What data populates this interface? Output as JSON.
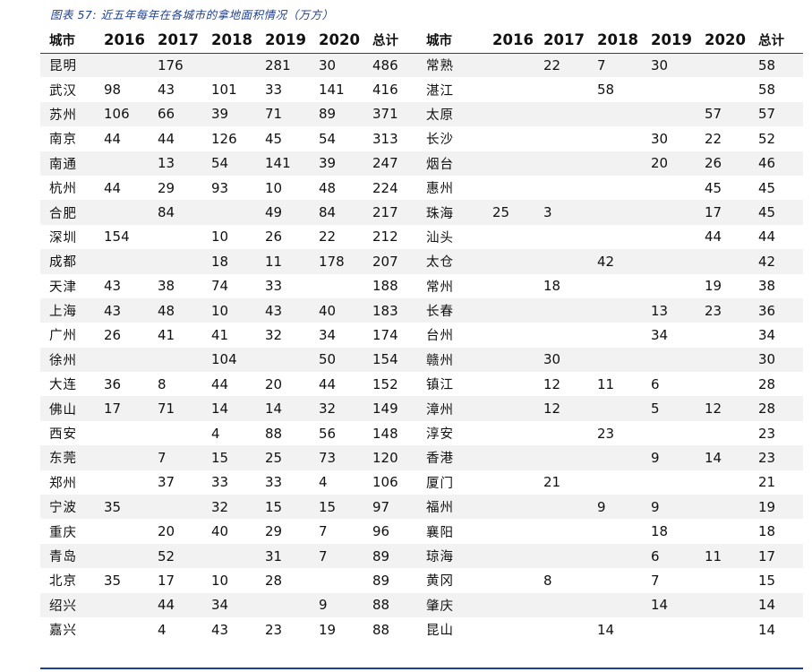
{
  "caption": "图表 57: 近五年每年在各城市的拿地面积情况（万方）",
  "headers": {
    "left": [
      "城市",
      "2016",
      "2017",
      "2018",
      "2019",
      "2020",
      "总计"
    ],
    "right": [
      "城市",
      "2016",
      "2017",
      "2018",
      "2019",
      "2020",
      "总计"
    ]
  },
  "rows": [
    {
      "left": [
        "昆明",
        "",
        "176",
        "",
        "281",
        "30",
        "486"
      ],
      "right": [
        "常熟",
        "",
        "22",
        "7",
        "30",
        "",
        "58"
      ]
    },
    {
      "left": [
        "武汉",
        "98",
        "43",
        "101",
        "33",
        "141",
        "416"
      ],
      "right": [
        "湛江",
        "",
        "",
        "58",
        "",
        "",
        "58"
      ]
    },
    {
      "left": [
        "苏州",
        "106",
        "66",
        "39",
        "71",
        "89",
        "371"
      ],
      "right": [
        "太原",
        "",
        "",
        "",
        "",
        "57",
        "57"
      ]
    },
    {
      "left": [
        "南京",
        "44",
        "44",
        "126",
        "45",
        "54",
        "313"
      ],
      "right": [
        "长沙",
        "",
        "",
        "",
        "30",
        "22",
        "52"
      ]
    },
    {
      "left": [
        "南通",
        "",
        "13",
        "54",
        "141",
        "39",
        "247"
      ],
      "right": [
        "烟台",
        "",
        "",
        "",
        "20",
        "26",
        "46"
      ]
    },
    {
      "left": [
        "杭州",
        "44",
        "29",
        "93",
        "10",
        "48",
        "224"
      ],
      "right": [
        "惠州",
        "",
        "",
        "",
        "",
        "45",
        "45"
      ]
    },
    {
      "left": [
        "合肥",
        "",
        "84",
        "",
        "49",
        "84",
        "217"
      ],
      "right": [
        "珠海",
        "25",
        "3",
        "",
        "",
        "17",
        "45"
      ]
    },
    {
      "left": [
        "深圳",
        "154",
        "",
        "10",
        "26",
        "22",
        "212"
      ],
      "right": [
        "汕头",
        "",
        "",
        "",
        "",
        "44",
        "44"
      ]
    },
    {
      "left": [
        "成都",
        "",
        "",
        "18",
        "11",
        "178",
        "207"
      ],
      "right": [
        "太仓",
        "",
        "",
        "42",
        "",
        "",
        "42"
      ]
    },
    {
      "left": [
        "天津",
        "43",
        "38",
        "74",
        "33",
        "",
        "188"
      ],
      "right": [
        "常州",
        "",
        "18",
        "",
        "",
        "19",
        "38"
      ]
    },
    {
      "left": [
        "上海",
        "43",
        "48",
        "10",
        "43",
        "40",
        "183"
      ],
      "right": [
        "长春",
        "",
        "",
        "",
        "13",
        "23",
        "36"
      ]
    },
    {
      "left": [
        "广州",
        "26",
        "41",
        "41",
        "32",
        "34",
        "174"
      ],
      "right": [
        "台州",
        "",
        "",
        "",
        "34",
        "",
        "34"
      ]
    },
    {
      "left": [
        "徐州",
        "",
        "",
        "104",
        "",
        "50",
        "154"
      ],
      "right": [
        "赣州",
        "",
        "30",
        "",
        "",
        "",
        "30"
      ]
    },
    {
      "left": [
        "大连",
        "36",
        "8",
        "44",
        "20",
        "44",
        "152"
      ],
      "right": [
        "镇江",
        "",
        "12",
        "11",
        "6",
        "",
        "28"
      ]
    },
    {
      "left": [
        "佛山",
        "17",
        "71",
        "14",
        "14",
        "32",
        "149"
      ],
      "right": [
        "漳州",
        "",
        "12",
        "",
        "5",
        "12",
        "28"
      ]
    },
    {
      "left": [
        "西安",
        "",
        "",
        "4",
        "88",
        "56",
        "148"
      ],
      "right": [
        "淳安",
        "",
        "",
        "23",
        "",
        "",
        "23"
      ]
    },
    {
      "left": [
        "东莞",
        "",
        "7",
        "15",
        "25",
        "73",
        "120"
      ],
      "right": [
        "香港",
        "",
        "",
        "",
        "9",
        "14",
        "23"
      ]
    },
    {
      "left": [
        "郑州",
        "",
        "37",
        "33",
        "33",
        "4",
        "106"
      ],
      "right": [
        "厦门",
        "",
        "21",
        "",
        "",
        "",
        "21"
      ]
    },
    {
      "left": [
        "宁波",
        "35",
        "",
        "32",
        "15",
        "15",
        "97"
      ],
      "right": [
        "福州",
        "",
        "",
        "9",
        "9",
        "",
        "19"
      ]
    },
    {
      "left": [
        "重庆",
        "",
        "20",
        "40",
        "29",
        "7",
        "96"
      ],
      "right": [
        "襄阳",
        "",
        "",
        "",
        "18",
        "",
        "18"
      ]
    },
    {
      "left": [
        "青岛",
        "",
        "52",
        "",
        "31",
        "7",
        "89"
      ],
      "right": [
        "琼海",
        "",
        "",
        "",
        "6",
        "11",
        "17"
      ]
    },
    {
      "left": [
        "北京",
        "35",
        "17",
        "10",
        "28",
        "",
        "89"
      ],
      "right": [
        "黄冈",
        "",
        "8",
        "",
        "7",
        "",
        "15"
      ]
    },
    {
      "left": [
        "绍兴",
        "",
        "44",
        "34",
        "",
        "9",
        "88"
      ],
      "right": [
        "肇庆",
        "",
        "",
        "",
        "14",
        "",
        "14"
      ]
    },
    {
      "left": [
        "嘉兴",
        "",
        "4",
        "43",
        "23",
        "19",
        "88"
      ],
      "right": [
        "昆山",
        "",
        "",
        "14",
        "",
        "",
        "14"
      ]
    }
  ]
}
